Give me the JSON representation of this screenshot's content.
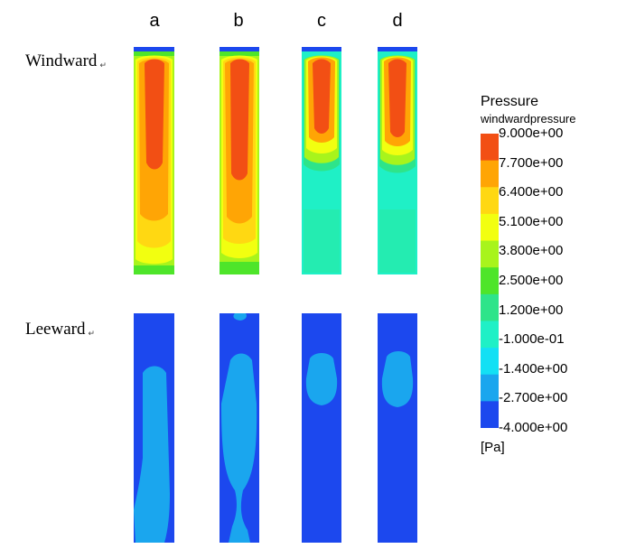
{
  "columns": [
    "a",
    "b",
    "c",
    "d"
  ],
  "rows": [
    {
      "label": "Windward",
      "mark": "↵"
    },
    {
      "label": "Leeward",
      "mark": "↵"
    }
  ],
  "legend": {
    "title": "Pressure",
    "subtitle": "windwardpressure",
    "unit": "[Pa]",
    "ticks": [
      "9.000e+00",
      "7.700e+00",
      "6.400e+00",
      "5.100e+00",
      "3.800e+00",
      "2.500e+00",
      "1.200e+00",
      "-1.000e-01",
      "-1.400e+00",
      "-2.700e+00",
      "-4.000e+00"
    ],
    "colors": [
      "#f24f14",
      "#ffa505",
      "#ffd812",
      "#f2ff10",
      "#a8f41c",
      "#4ee52a",
      "#2ee48a",
      "#1ff0c6",
      "#13e0f4",
      "#1aa6ee",
      "#1c48ee"
    ]
  },
  "panel_colors": {
    "dark_blue": "#1c48ee",
    "light_blue": "#1aa6ee"
  }
}
